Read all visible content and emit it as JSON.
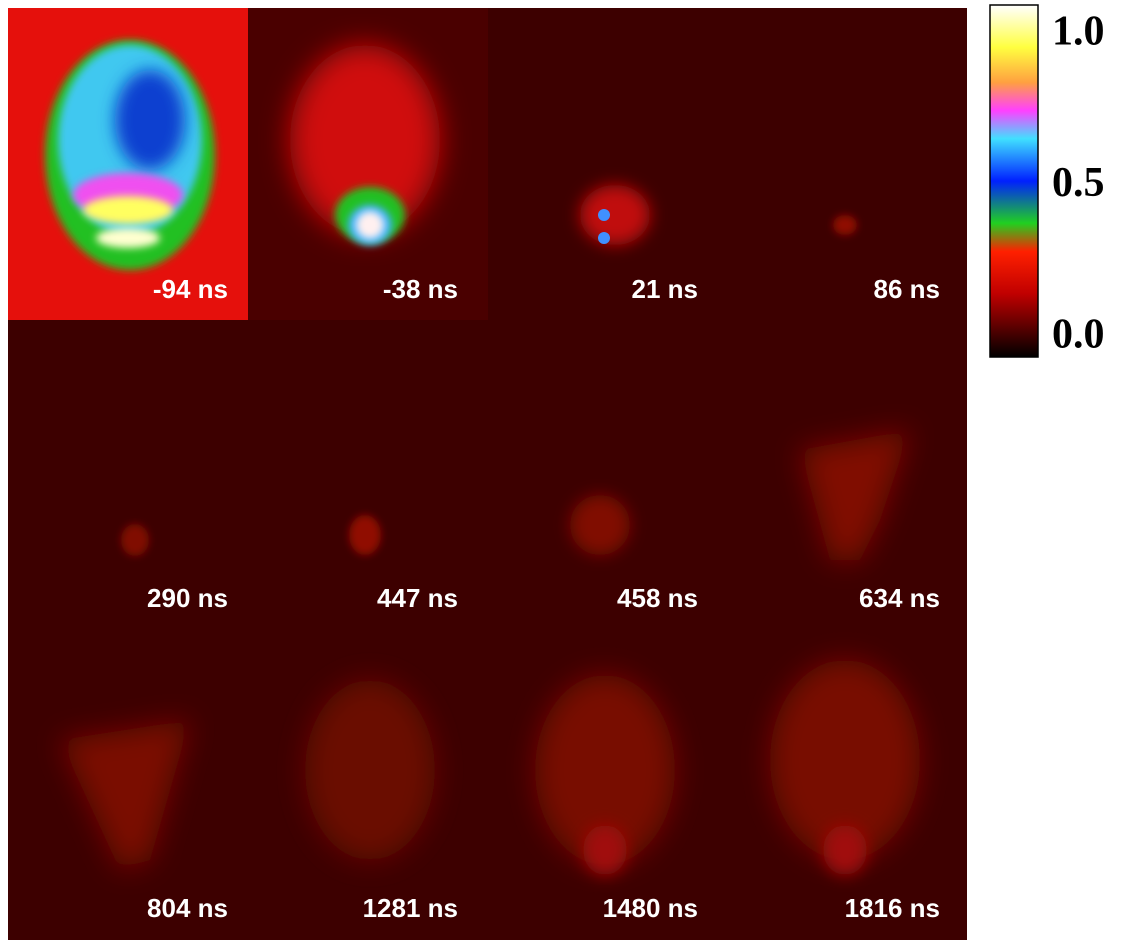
{
  "panels": [
    {
      "label": "-94 ns"
    },
    {
      "label": "-38 ns"
    },
    {
      "label": "21 ns"
    },
    {
      "label": "86 ns"
    },
    {
      "label": "290 ns"
    },
    {
      "label": "447 ns"
    },
    {
      "label": "458 ns"
    },
    {
      "label": "634 ns"
    },
    {
      "label": "804 ns"
    },
    {
      "label": "1281 ns"
    },
    {
      "label": "1480 ns"
    },
    {
      "label": "1816 ns"
    }
  ],
  "colorbar": {
    "ticks": [
      "1.0",
      "0.5",
      "0.0"
    ]
  }
}
